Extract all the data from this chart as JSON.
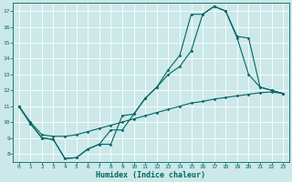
{
  "xlabel": "Humidex (Indice chaleur)",
  "bg_color": "#cce8e8",
  "line_color": "#006666",
  "grid_color": "#ffffff",
  "xlim": [
    -0.5,
    23.5
  ],
  "ylim": [
    7.5,
    17.5
  ],
  "yticks": [
    8,
    9,
    10,
    11,
    12,
    13,
    14,
    15,
    16,
    17
  ],
  "xticks": [
    0,
    1,
    2,
    3,
    4,
    5,
    6,
    7,
    8,
    9,
    10,
    11,
    12,
    13,
    14,
    15,
    16,
    17,
    18,
    19,
    20,
    21,
    22,
    23
  ],
  "line1": {
    "x": [
      0,
      1,
      2,
      3,
      4,
      5,
      6,
      7,
      8,
      9,
      10,
      11,
      12,
      13,
      14,
      15,
      16,
      17,
      18,
      19,
      20,
      21,
      22,
      23
    ],
    "y": [
      11,
      9.9,
      9.0,
      8.9,
      7.7,
      7.75,
      8.3,
      8.6,
      9.5,
      9.5,
      10.5,
      11.5,
      12.2,
      13.3,
      14.2,
      16.8,
      16.8,
      17.3,
      17.0,
      15.3,
      13.0,
      12.2,
      12.0,
      11.8
    ]
  },
  "line2": {
    "x": [
      0,
      1,
      2,
      3,
      4,
      5,
      6,
      7,
      8,
      9,
      10,
      11,
      12,
      13,
      14,
      15,
      16,
      17,
      18,
      19,
      20,
      21,
      22,
      23
    ],
    "y": [
      11,
      9.9,
      9.0,
      8.9,
      7.7,
      7.75,
      8.3,
      8.6,
      8.6,
      10.4,
      10.5,
      11.5,
      12.2,
      13.0,
      13.5,
      14.5,
      16.8,
      17.3,
      17.0,
      15.4,
      15.3,
      12.2,
      12.0,
      11.8
    ]
  },
  "line3": {
    "x": [
      0,
      1,
      2,
      3,
      4,
      5,
      6,
      7,
      8,
      9,
      10,
      11,
      12,
      13,
      14,
      15,
      16,
      17,
      18,
      19,
      20,
      21,
      22,
      23
    ],
    "y": [
      11,
      10.0,
      9.2,
      9.1,
      9.1,
      9.2,
      9.4,
      9.6,
      9.8,
      10.0,
      10.2,
      10.4,
      10.6,
      10.8,
      11.0,
      11.2,
      11.3,
      11.45,
      11.55,
      11.65,
      11.75,
      11.85,
      11.9,
      11.8
    ]
  }
}
